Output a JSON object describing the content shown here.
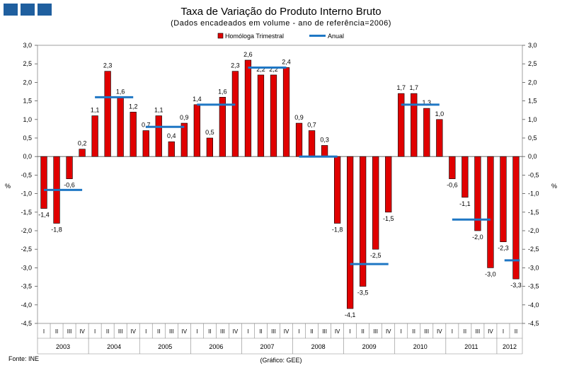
{
  "title": "Taxa de Variação do Produto Interno Bruto",
  "subtitle": "(Dados encadeados em volume - ano de referência=2006)",
  "footer": {
    "source": "Fonte: INE",
    "credit": "(Gráfico: GEE)"
  },
  "colors": {
    "bar": "#e00000",
    "bar_border": "#000000",
    "annual": "#1f77c4",
    "logo": "#1f5f9f"
  },
  "chart_data": {
    "type": "bar",
    "title": "Taxa de Variação do Produto Interno Bruto",
    "ylabel": "%",
    "ylim": [
      -4.5,
      3.0
    ],
    "y_ticks": [
      "3,0",
      "2,5",
      "2,0",
      "1,5",
      "1,0",
      "0,5",
      "0,0",
      "-0,5",
      "-1,0",
      "-1,5",
      "-2,0",
      "-2,5",
      "-3,0",
      "-3,5",
      "-4,0",
      "-4,5"
    ],
    "legend": [
      "Homóloga Trimestral",
      "Anual"
    ],
    "quarter_labels": [
      "I",
      "II",
      "III",
      "IV"
    ],
    "years": [
      {
        "label": "2003",
        "quarters": 4
      },
      {
        "label": "2004",
        "quarters": 4
      },
      {
        "label": "2005",
        "quarters": 4
      },
      {
        "label": "2006",
        "quarters": 4
      },
      {
        "label": "2007",
        "quarters": 4
      },
      {
        "label": "2008",
        "quarters": 4
      },
      {
        "label": "2009",
        "quarters": 4
      },
      {
        "label": "2010",
        "quarters": 4
      },
      {
        "label": "2011",
        "quarters": 4
      },
      {
        "label": "2012",
        "quarters": 2
      }
    ],
    "series": [
      {
        "name": "Homóloga Trimestral",
        "values": [
          -1.4,
          -1.8,
          -0.6,
          0.2,
          1.1,
          2.3,
          1.6,
          1.2,
          0.7,
          1.1,
          0.4,
          0.9,
          1.4,
          0.5,
          1.6,
          2.3,
          2.6,
          2.2,
          2.2,
          2.4,
          0.9,
          0.7,
          0.3,
          -1.8,
          -4.1,
          -3.5,
          -2.5,
          -1.5,
          1.7,
          1.7,
          1.3,
          1.0,
          -0.6,
          -1.1,
          -2.0,
          -3.0,
          -2.3,
          -3.3
        ],
        "labels": [
          "-1,4",
          "-1,8",
          "-0,6",
          "0,2",
          "1,1",
          "2,3",
          "1,6",
          "1,2",
          "0,7",
          "1,1",
          "0,4",
          "0,9",
          "1,4",
          "0,5",
          "1,6",
          "2,3",
          "2,6",
          "2,2",
          "2,2",
          "2,4",
          "0,9",
          "0,7",
          "0,3",
          "-1,8",
          "-4,1",
          "-3,5",
          "-2,5",
          "-1,5",
          "1,7",
          "1,7",
          "1,3",
          "1,0",
          "-0,6",
          "-1,1",
          "-2,0",
          "-3,0",
          "-2,3",
          "-3,3"
        ]
      },
      {
        "name": "Anual",
        "values": [
          -0.9,
          1.6,
          0.8,
          1.4,
          2.4,
          0.0,
          -2.9,
          1.4,
          -1.7,
          -2.8
        ]
      }
    ]
  }
}
